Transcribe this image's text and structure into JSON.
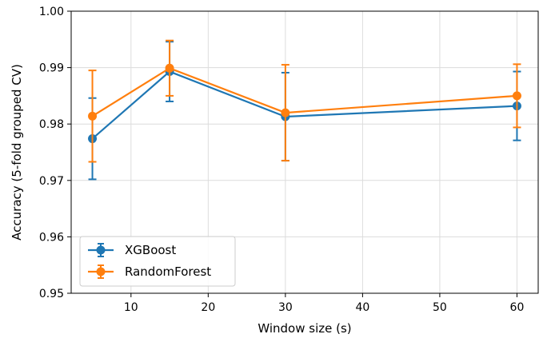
{
  "chart_data": {
    "type": "line",
    "title": "",
    "xlabel": "Window size (s)",
    "ylabel": "Accuracy (5-fold grouped CV)",
    "xlim": [
      2.25,
      62.75
    ],
    "ylim": [
      0.95,
      1.0
    ],
    "x": [
      5,
      15,
      30,
      60
    ],
    "xticks": [
      10,
      20,
      30,
      40,
      50,
      60
    ],
    "xtick_labels": [
      "10",
      "20",
      "30",
      "40",
      "50",
      "60"
    ],
    "yticks": [
      0.95,
      0.96,
      0.97,
      0.98,
      0.99,
      1.0
    ],
    "ytick_labels": [
      "0.95",
      "0.96",
      "0.97",
      "0.98",
      "0.99",
      "1.00"
    ],
    "grid": true,
    "legend_position": "lower-left",
    "series": [
      {
        "name": "XGBoost",
        "color": "#1f77b4",
        "values": [
          0.9774,
          0.9893,
          0.9813,
          0.9832
        ],
        "error": [
          0.0072,
          0.0053,
          0.0078,
          0.0061
        ]
      },
      {
        "name": "RandomForest",
        "color": "#ff7f0e",
        "values": [
          0.9814,
          0.9899,
          0.982,
          0.985
        ],
        "error": [
          0.0081,
          0.0049,
          0.0085,
          0.0056
        ]
      }
    ]
  }
}
